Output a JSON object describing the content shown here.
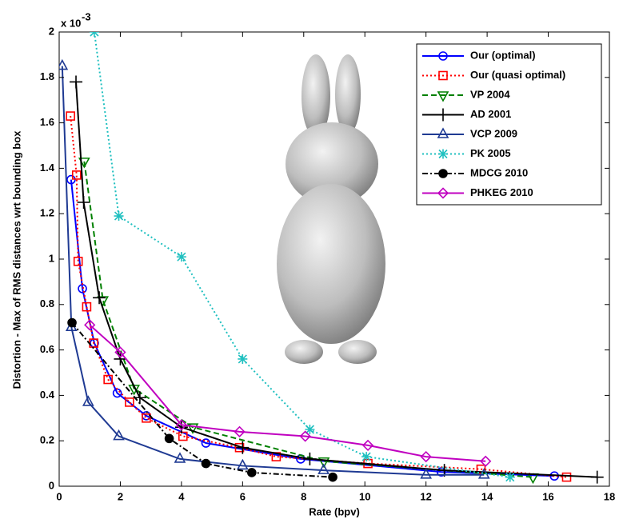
{
  "chart_data": {
    "type": "line",
    "xlabel": "Rate (bpv)",
    "ylabel": "Distortion - Max of RMS distances wrt bounding box",
    "y_scale_note": {
      "base": "x 10",
      "exponent": "-3"
    },
    "xlim": [
      0,
      18
    ],
    "xticks": [
      0,
      2,
      4,
      6,
      8,
      10,
      12,
      14,
      16,
      18
    ],
    "ylim": [
      0,
      2
    ],
    "yticks": [
      0,
      0.2,
      0.4,
      0.6,
      0.8,
      1,
      1.2,
      1.4,
      1.6,
      1.8,
      2
    ],
    "legend": "top-right",
    "series": [
      {
        "name": "Our (optimal)",
        "color": "#0000ff",
        "marker": "circle",
        "line_style": "solid",
        "x": [
          0.39,
          0.76,
          1.15,
          1.9,
          2.85,
          4.8,
          7.9,
          12.5,
          16.2
        ],
        "values": [
          1.35,
          0.87,
          0.63,
          0.41,
          0.31,
          0.19,
          0.12,
          0.063,
          0.045
        ]
      },
      {
        "name": "Our (quasi optimal)",
        "color": "#ff0000",
        "marker": "square",
        "line_style": "dotted",
        "x": [
          0.37,
          0.57,
          0.62,
          0.9,
          1.13,
          1.6,
          2.3,
          2.85,
          4.05,
          5.9,
          7.1,
          10.1,
          13.8,
          16.6
        ],
        "values": [
          1.63,
          1.37,
          0.99,
          0.79,
          0.63,
          0.47,
          0.37,
          0.3,
          0.22,
          0.17,
          0.13,
          0.1,
          0.075,
          0.04
        ]
      },
      {
        "name": "VP 2004",
        "color": "#008000",
        "marker": "triangle-down",
        "line_style": "dashed",
        "x": [
          0.82,
          1.43,
          2.45,
          4.37,
          8.66,
          15.5
        ],
        "values": [
          1.43,
          0.82,
          0.43,
          0.26,
          0.11,
          0.04
        ]
      },
      {
        "name": "AD 2001",
        "color": "#000000",
        "marker": "plus",
        "line_style": "solid",
        "x": [
          0.55,
          0.8,
          1.31,
          2.0,
          2.64,
          4.0,
          6.0,
          8.2,
          12.6,
          17.6
        ],
        "values": [
          1.78,
          1.25,
          0.83,
          0.56,
          0.39,
          0.26,
          0.17,
          0.12,
          0.07,
          0.04
        ]
      },
      {
        "name": "VCP 2009",
        "color": "#1f3a93",
        "marker": "triangle-up",
        "line_style": "solid",
        "x": [
          0.1,
          0.4,
          0.95,
          1.95,
          3.95,
          6.0,
          8.65,
          12.0,
          13.9
        ],
        "values": [
          1.85,
          0.7,
          0.37,
          0.22,
          0.12,
          0.09,
          0.07,
          0.05,
          0.05
        ]
      },
      {
        "name": "PK 2005",
        "color": "#20c0c0",
        "marker": "star",
        "line_style": "dotted",
        "x": [
          1.15,
          1.95,
          4.0,
          6.0,
          8.2,
          10.05,
          14.75
        ],
        "values": [
          2,
          1.19,
          1.01,
          0.56,
          0.25,
          0.13,
          0.04
        ]
      },
      {
        "name": "MDCG 2010",
        "color": "#000000",
        "marker": "dot",
        "line_style": "dashdot",
        "x": [
          0.42,
          3.6,
          4.8,
          6.3,
          8.95
        ],
        "values": [
          0.72,
          0.21,
          0.1,
          0.06,
          0.04
        ]
      },
      {
        "name": "PHKEG 2010",
        "color": "#c000c0",
        "marker": "diamond",
        "line_style": "solid",
        "x": [
          1.0,
          2.0,
          4.0,
          5.9,
          8.05,
          10.1,
          12.0,
          13.95
        ],
        "values": [
          0.71,
          0.59,
          0.27,
          0.24,
          0.22,
          0.18,
          0.13,
          0.11
        ]
      }
    ]
  }
}
